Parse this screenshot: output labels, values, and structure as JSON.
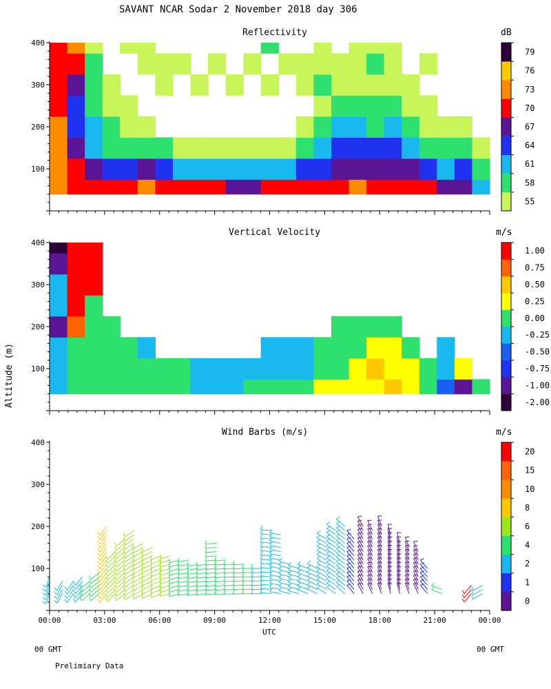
{
  "header": {
    "title": "SAVANT  NCAR Sodar   2 November 2018  day 306"
  },
  "footer": {
    "left_gmt": "00 GMT",
    "right_gmt": "00 GMT",
    "note": "Prelimiary Data"
  },
  "chart_data": [
    {
      "type": "heatmap",
      "title": "Reflectivity",
      "xlabel": "",
      "ylabel": "",
      "x_range_hours": [
        0,
        24
      ],
      "ylim": [
        0,
        400
      ],
      "yticks": [
        100,
        200,
        300,
        400
      ],
      "colorbar_unit": "dB",
      "colorbar_labels": [
        "55",
        "58",
        "61",
        "64",
        "67",
        "70",
        "73",
        "76",
        "79"
      ],
      "colors": [
        "#c8f55a",
        "#2ee06e",
        "#19b9f0",
        "#1e32f0",
        "#5a1496",
        "#ff0000",
        "#ff8c00",
        "#ffc800",
        "#2d0037"
      ],
      "time_hours": [
        0,
        1,
        2,
        3,
        4,
        5,
        6,
        7,
        8,
        9,
        10,
        11,
        12,
        13,
        14,
        15,
        16,
        17,
        18,
        19,
        20,
        21,
        22,
        23,
        24
      ],
      "altitudes_m": [
        50,
        100,
        150,
        200,
        250,
        300,
        350,
        400
      ],
      "level_index": [
        [
          6,
          6,
          6,
          6,
          5,
          5,
          5,
          5
        ],
        [
          5,
          5,
          4,
          3,
          3,
          4,
          5,
          6
        ],
        [
          5,
          4,
          2,
          2,
          1,
          1,
          1,
          0
        ],
        [
          5,
          3,
          1,
          1,
          0,
          0,
          -1,
          -1
        ],
        [
          5,
          3,
          1,
          0,
          0,
          -1,
          -1,
          0
        ],
        [
          6,
          4,
          1,
          0,
          -1,
          -1,
          0,
          0
        ],
        [
          5,
          3,
          1,
          -1,
          -1,
          0,
          0,
          -1
        ],
        [
          5,
          2,
          0,
          -1,
          -1,
          -1,
          0,
          -1
        ],
        [
          5,
          2,
          0,
          -1,
          -1,
          0,
          -1,
          -1
        ],
        [
          5,
          2,
          0,
          -1,
          -1,
          -1,
          0,
          -1
        ],
        [
          4,
          2,
          0,
          -1,
          -1,
          0,
          -1,
          -1
        ],
        [
          4,
          2,
          0,
          -1,
          -1,
          -1,
          0,
          -1
        ],
        [
          5,
          2,
          0,
          -1,
          -1,
          0,
          -1,
          1
        ],
        [
          5,
          2,
          0,
          -1,
          -1,
          -1,
          0,
          -1
        ],
        [
          5,
          3,
          1,
          0,
          -1,
          0,
          0,
          -1
        ],
        [
          5,
          3,
          2,
          1,
          0,
          1,
          0,
          0
        ],
        [
          5,
          4,
          3,
          2,
          1,
          0,
          0,
          -1
        ],
        [
          6,
          4,
          3,
          2,
          1,
          0,
          0,
          0
        ],
        [
          5,
          4,
          3,
          1,
          1,
          0,
          1,
          0
        ],
        [
          5,
          4,
          3,
          2,
          1,
          0,
          0,
          0
        ],
        [
          5,
          4,
          2,
          1,
          0,
          0,
          -1,
          -1
        ],
        [
          5,
          3,
          1,
          0,
          0,
          -1,
          0,
          -1
        ],
        [
          4,
          2,
          1,
          0,
          -1,
          -1,
          -1,
          -1
        ],
        [
          4,
          3,
          1,
          0,
          -1,
          -1,
          -1,
          -1
        ],
        [
          2,
          1,
          0,
          -1,
          -1,
          -1,
          -1,
          -1
        ]
      ]
    },
    {
      "type": "heatmap",
      "title": "Vertical Velocity",
      "xlabel": "",
      "ylabel": "Altitude (m)",
      "x_range_hours": [
        0,
        24
      ],
      "ylim": [
        0,
        400
      ],
      "yticks": [
        100,
        200,
        300,
        400
      ],
      "colorbar_unit": "m/s",
      "colorbar_labels": [
        "-2.00",
        "-1.00",
        "-0.75",
        "-0.50",
        "-0.25",
        "0.00",
        "0.25",
        "0.50",
        "0.75",
        "1.00"
      ],
      "colors": [
        "#2d0037",
        "#5a1496",
        "#1e32f0",
        "#195ff0",
        "#19b9f0",
        "#2ee06e",
        "#ffff00",
        "#ffc800",
        "#ff6400",
        "#ff0000"
      ],
      "time_hours": [
        0,
        1,
        2,
        3,
        4,
        5,
        6,
        7,
        8,
        9,
        10,
        11,
        12,
        13,
        14,
        15,
        16,
        17,
        18,
        19,
        20,
        21,
        22,
        23,
        24
      ],
      "altitudes_m": [
        50,
        100,
        150,
        200,
        250,
        300,
        350,
        400
      ],
      "level_index": [
        [
          4,
          4,
          4,
          1,
          4,
          4,
          1,
          0
        ],
        [
          5,
          5,
          5,
          8,
          9,
          9,
          9,
          9
        ],
        [
          5,
          5,
          5,
          5,
          5,
          9,
          9,
          9
        ],
        [
          5,
          5,
          5,
          5,
          -1,
          -1,
          -1,
          -1
        ],
        [
          5,
          5,
          5,
          -1,
          -1,
          -1,
          -1,
          -1
        ],
        [
          5,
          5,
          4,
          -1,
          -1,
          -1,
          -1,
          -1
        ],
        [
          5,
          5,
          -1,
          -1,
          -1,
          -1,
          -1,
          -1
        ],
        [
          5,
          5,
          -1,
          -1,
          -1,
          -1,
          -1,
          -1
        ],
        [
          4,
          4,
          -1,
          -1,
          -1,
          -1,
          -1,
          -1
        ],
        [
          4,
          4,
          -1,
          -1,
          -1,
          -1,
          -1,
          -1
        ],
        [
          4,
          4,
          -1,
          -1,
          -1,
          -1,
          -1,
          -1
        ],
        [
          5,
          4,
          -1,
          -1,
          -1,
          -1,
          -1,
          -1
        ],
        [
          5,
          4,
          4,
          -1,
          -1,
          -1,
          -1,
          -1
        ],
        [
          5,
          4,
          4,
          -1,
          -1,
          -1,
          -1,
          -1
        ],
        [
          5,
          4,
          4,
          -1,
          -1,
          -1,
          -1,
          -1
        ],
        [
          6,
          5,
          5,
          -1,
          -1,
          -1,
          -1,
          -1
        ],
        [
          6,
          5,
          5,
          5,
          -1,
          -1,
          -1,
          -1
        ],
        [
          6,
          6,
          5,
          5,
          -1,
          -1,
          -1,
          -1
        ],
        [
          6,
          7,
          6,
          5,
          -1,
          -1,
          -1,
          -1
        ],
        [
          7,
          6,
          6,
          5,
          -1,
          -1,
          -1,
          -1
        ],
        [
          6,
          6,
          5,
          -1,
          -1,
          -1,
          -1,
          -1
        ],
        [
          5,
          5,
          -1,
          -1,
          -1,
          -1,
          -1,
          -1
        ],
        [
          3,
          4,
          4,
          -1,
          -1,
          -1,
          -1,
          -1
        ],
        [
          1,
          6,
          -1,
          -1,
          -1,
          -1,
          -1,
          -1
        ],
        [
          5,
          -1,
          -1,
          -1,
          -1,
          -1,
          -1,
          -1
        ]
      ]
    },
    {
      "type": "scatter",
      "title": "Wind Barbs (m/s)",
      "xlabel": "UTC",
      "ylabel": "",
      "x_range_hours": [
        0,
        24
      ],
      "xticks_labels": [
        "00:00",
        "03:00",
        "06:00",
        "09:00",
        "12:00",
        "15:00",
        "18:00",
        "21:00",
        "00:00"
      ],
      "ylim": [
        0,
        400
      ],
      "yticks": [
        100,
        200,
        300,
        400
      ],
      "colorbar_unit": "m/s",
      "colorbar_labels": [
        "0",
        "1",
        "2",
        "4",
        "6",
        "8",
        "10",
        "15",
        "20"
      ],
      "colors": [
        "#5a1496",
        "#1e32f0",
        "#19b9f0",
        "#2ee06e",
        "#9be61e",
        "#ffc800",
        "#ff8c00",
        "#ff6400",
        "#ff0000"
      ],
      "barb_columns": [
        {
          "t": 0.0,
          "top_m": 80,
          "speed_idx": 2,
          "dir_deg": 200
        },
        {
          "t": 0.7,
          "top_m": 70,
          "speed_idx": 2,
          "dir_deg": 210
        },
        {
          "t": 1.3,
          "top_m": 70,
          "speed_idx": 2,
          "dir_deg": 215
        },
        {
          "t": 1.8,
          "top_m": 80,
          "speed_idx": 2,
          "dir_deg": 220
        },
        {
          "t": 2.2,
          "top_m": 70,
          "speed_idx": 3,
          "dir_deg": 230
        },
        {
          "t": 2.7,
          "top_m": 90,
          "speed_idx": 3,
          "dir_deg": 230
        },
        {
          "t": 3.1,
          "top_m": 200,
          "speed_idx": 5,
          "dir_deg": 215
        },
        {
          "t": 3.6,
          "top_m": 140,
          "speed_idx": 4,
          "dir_deg": 225
        },
        {
          "t": 4.1,
          "top_m": 170,
          "speed_idx": 4,
          "dir_deg": 230
        },
        {
          "t": 4.6,
          "top_m": 190,
          "speed_idx": 4,
          "dir_deg": 235
        },
        {
          "t": 5.1,
          "top_m": 160,
          "speed_idx": 4,
          "dir_deg": 240
        },
        {
          "t": 5.6,
          "top_m": 150,
          "speed_idx": 4,
          "dir_deg": 245
        },
        {
          "t": 6.1,
          "top_m": 130,
          "speed_idx": 4,
          "dir_deg": 250
        },
        {
          "t": 6.6,
          "top_m": 130,
          "speed_idx": 4,
          "dir_deg": 255
        },
        {
          "t": 7.1,
          "top_m": 120,
          "speed_idx": 3,
          "dir_deg": 255
        },
        {
          "t": 7.6,
          "top_m": 120,
          "speed_idx": 3,
          "dir_deg": 260
        },
        {
          "t": 8.1,
          "top_m": 110,
          "speed_idx": 3,
          "dir_deg": 260
        },
        {
          "t": 8.6,
          "top_m": 110,
          "speed_idx": 3,
          "dir_deg": 262
        },
        {
          "t": 9.1,
          "top_m": 160,
          "speed_idx": 3,
          "dir_deg": 265
        },
        {
          "t": 9.6,
          "top_m": 120,
          "speed_idx": 3,
          "dir_deg": 265
        },
        {
          "t": 10.1,
          "top_m": 110,
          "speed_idx": 3,
          "dir_deg": 268
        },
        {
          "t": 10.6,
          "top_m": 110,
          "speed_idx": 3,
          "dir_deg": 268
        },
        {
          "t": 11.1,
          "top_m": 100,
          "speed_idx": 3,
          "dir_deg": 270
        },
        {
          "t": 11.6,
          "top_m": 100,
          "speed_idx": 2,
          "dir_deg": 270
        },
        {
          "t": 12.1,
          "top_m": 190,
          "speed_idx": 2,
          "dir_deg": 275
        },
        {
          "t": 12.6,
          "top_m": 180,
          "speed_idx": 2,
          "dir_deg": 280
        },
        {
          "t": 13.1,
          "top_m": 110,
          "speed_idx": 2,
          "dir_deg": 285
        },
        {
          "t": 13.6,
          "top_m": 100,
          "speed_idx": 2,
          "dir_deg": 285
        },
        {
          "t": 14.1,
          "top_m": 100,
          "speed_idx": 2,
          "dir_deg": 290
        },
        {
          "t": 14.6,
          "top_m": 100,
          "speed_idx": 2,
          "dir_deg": 295
        },
        {
          "t": 15.1,
          "top_m": 170,
          "speed_idx": 2,
          "dir_deg": 300
        },
        {
          "t": 15.6,
          "top_m": 190,
          "speed_idx": 2,
          "dir_deg": 305
        },
        {
          "t": 16.1,
          "top_m": 200,
          "speed_idx": 2,
          "dir_deg": 310
        },
        {
          "t": 16.6,
          "top_m": 170,
          "speed_idx": 1,
          "dir_deg": 320
        },
        {
          "t": 17.1,
          "top_m": 200,
          "speed_idx": 0,
          "dir_deg": 330
        },
        {
          "t": 17.6,
          "top_m": 190,
          "speed_idx": 0,
          "dir_deg": 335
        },
        {
          "t": 18.1,
          "top_m": 200,
          "speed_idx": 0,
          "dir_deg": 340
        },
        {
          "t": 18.6,
          "top_m": 180,
          "speed_idx": 0,
          "dir_deg": 345
        },
        {
          "t": 19.1,
          "top_m": 160,
          "speed_idx": 0,
          "dir_deg": 345
        },
        {
          "t": 19.6,
          "top_m": 150,
          "speed_idx": 0,
          "dir_deg": 340
        },
        {
          "t": 20.1,
          "top_m": 140,
          "speed_idx": 0,
          "dir_deg": 335
        },
        {
          "t": 20.6,
          "top_m": 100,
          "speed_idx": 1,
          "dir_deg": 320
        },
        {
          "t": 21.4,
          "top_m": 50,
          "speed_idx": 3,
          "dir_deg": 290
        },
        {
          "t": 23.0,
          "top_m": 60,
          "speed_idx": 8,
          "dir_deg": 220
        },
        {
          "t": 23.6,
          "top_m": 60,
          "speed_idx": 2,
          "dir_deg": 240
        }
      ]
    }
  ]
}
